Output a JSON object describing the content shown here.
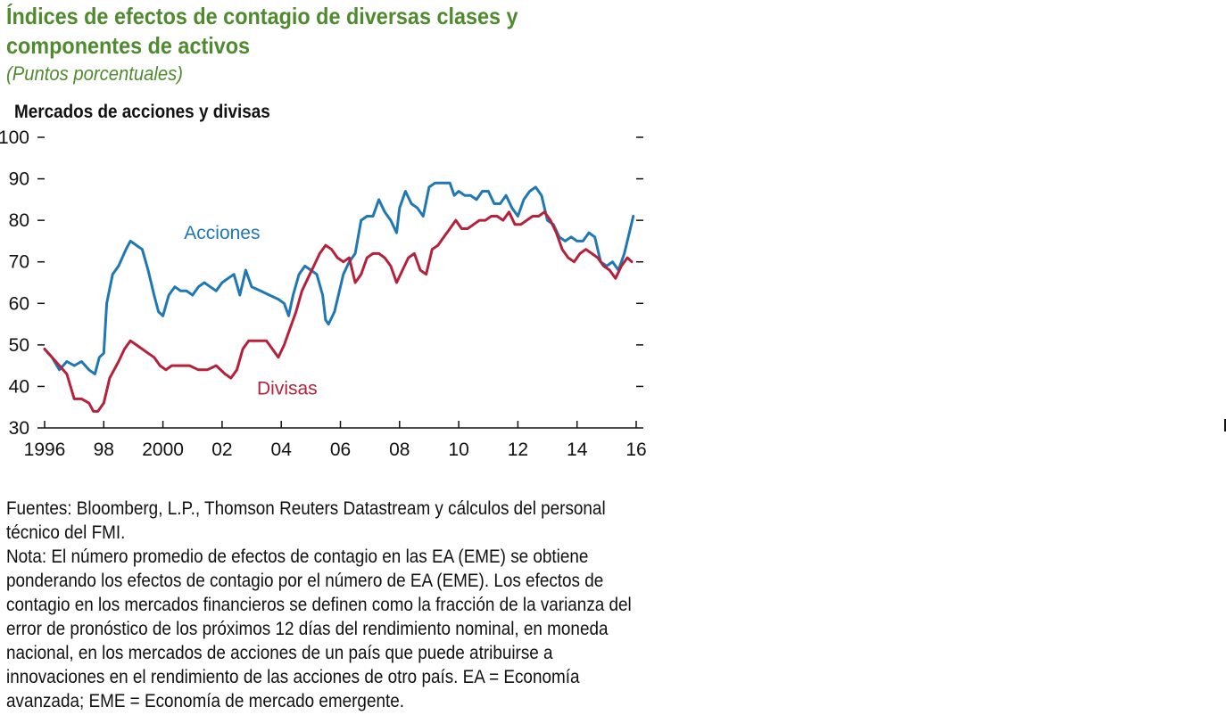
{
  "figure": {
    "title": "Índices de efectos de contagio de diversas clases y componentes de activos",
    "subtitle": "(Puntos porcentuales)",
    "panel_title": "Mercados de acciones y divisas",
    "sources": "Fuentes: Bloomberg, L.P., Thomson Reuters Datastream y cálculos del personal técnico del FMI.",
    "note": "Nota: El número promedio de efectos de contagio en las EA (EME) se obtiene ponderando los efectos de contagio por el número de EA (EME). Los efectos de contagio en los mercados financieros se definen como la fracción de la varianza del error de pronóstico de los próximos 12 días del rendimiento nominal, en moneda nacional, en los mercados de acciones de un país que puede atribuirse a innovaciones en el rendimiento de las acciones de otro país. EA = Economía avanzada; EME = Economía de mercado emergente."
  },
  "colors": {
    "title": "#4f8a2f",
    "acciones": "#1f77b4",
    "divisas": "#b5213b",
    "axis": "#111111"
  },
  "chart_data": {
    "type": "line",
    "title": "Mercados de acciones y divisas",
    "xlabel": "",
    "ylabel": "",
    "xlim": [
      1996,
      2016
    ],
    "ylim": [
      30,
      100
    ],
    "y_ticks": [
      30,
      40,
      50,
      60,
      70,
      80,
      90,
      100
    ],
    "y_tick_labels": [
      "30",
      "40",
      "50",
      "60",
      "70",
      "80",
      "90",
      "100"
    ],
    "x_ticks": [
      1996,
      1998,
      2000,
      2002,
      2004,
      2006,
      2008,
      2010,
      2012,
      2014,
      2016
    ],
    "x_tick_labels": [
      "1996",
      "98",
      "2000",
      "02",
      "04",
      "06",
      "08",
      "10",
      "12",
      "14",
      "16"
    ],
    "grid": false,
    "series": [
      {
        "name": "Acciones",
        "color_key": "acciones",
        "label_at": [
          2002.0,
          75.5
        ],
        "x": [
          1996.0,
          1996.25,
          1996.5,
          1996.75,
          1997.0,
          1997.25,
          1997.5,
          1997.7,
          1997.85,
          1998.0,
          1998.1,
          1998.3,
          1998.5,
          1998.75,
          1998.9,
          1999.1,
          1999.3,
          1999.5,
          1999.7,
          1999.85,
          2000.0,
          2000.2,
          2000.4,
          2000.6,
          2000.8,
          2001.0,
          2001.2,
          2001.4,
          2001.6,
          2001.8,
          2002.0,
          2002.2,
          2002.4,
          2002.6,
          2002.8,
          2003.0,
          2003.3,
          2003.6,
          2003.9,
          2004.1,
          2004.25,
          2004.4,
          2004.6,
          2004.8,
          2005.0,
          2005.2,
          2005.4,
          2005.5,
          2005.6,
          2005.8,
          2006.0,
          2006.1,
          2006.3,
          2006.5,
          2006.7,
          2006.9,
          2007.1,
          2007.3,
          2007.5,
          2007.7,
          2007.9,
          2008.0,
          2008.2,
          2008.4,
          2008.6,
          2008.8,
          2009.0,
          2009.2,
          2009.5,
          2009.7,
          2009.85,
          2010.0,
          2010.2,
          2010.4,
          2010.6,
          2010.8,
          2011.0,
          2011.2,
          2011.4,
          2011.6,
          2011.8,
          2012.0,
          2012.2,
          2012.4,
          2012.6,
          2012.8,
          2013.0,
          2013.2,
          2013.4,
          2013.6,
          2013.8,
          2014.0,
          2014.2,
          2014.4,
          2014.6,
          2014.8,
          2015.0,
          2015.2,
          2015.4,
          2015.6,
          2015.8,
          2015.9
        ],
        "y": [
          49,
          47,
          44,
          46,
          45,
          46,
          44,
          43,
          47,
          48,
          60,
          67,
          69,
          73,
          75,
          74,
          73,
          68,
          62,
          58,
          57,
          62,
          64,
          63,
          63,
          62,
          64,
          65,
          64,
          63,
          65,
          66,
          67,
          62,
          68,
          64,
          63,
          62,
          61,
          60,
          57,
          62,
          67,
          69,
          68,
          67,
          62,
          56,
          55,
          58,
          64,
          67,
          70,
          72,
          80,
          81,
          81,
          85,
          82,
          80,
          77,
          83,
          87,
          84,
          83,
          81,
          88,
          89,
          89,
          89,
          86,
          87,
          86,
          86,
          85,
          87,
          87,
          84,
          84,
          86,
          83,
          81,
          85,
          87,
          88,
          86,
          80,
          79,
          76,
          75,
          76,
          75,
          75,
          77,
          76,
          70,
          69,
          70,
          68,
          72,
          78,
          81
        ]
      },
      {
        "name": "Divisas",
        "color_key": "divisas",
        "label_at": [
          2004.2,
          38.0
        ],
        "x": [
          1996.0,
          1996.25,
          1996.5,
          1996.75,
          1997.0,
          1997.25,
          1997.5,
          1997.65,
          1997.8,
          1998.0,
          1998.2,
          1998.5,
          1998.7,
          1998.9,
          1999.1,
          1999.3,
          1999.5,
          1999.7,
          1999.9,
          2000.1,
          2000.3,
          2000.6,
          2000.9,
          2001.2,
          2001.5,
          2001.8,
          2002.1,
          2002.3,
          2002.5,
          2002.7,
          2002.9,
          2003.2,
          2003.5,
          2003.7,
          2003.9,
          2004.1,
          2004.3,
          2004.5,
          2004.7,
          2004.9,
          2005.1,
          2005.3,
          2005.5,
          2005.7,
          2005.9,
          2006.1,
          2006.3,
          2006.5,
          2006.7,
          2006.9,
          2007.1,
          2007.3,
          2007.5,
          2007.7,
          2007.9,
          2008.1,
          2008.3,
          2008.5,
          2008.7,
          2008.9,
          2009.1,
          2009.3,
          2009.5,
          2009.7,
          2009.9,
          2010.1,
          2010.3,
          2010.5,
          2010.7,
          2010.9,
          2011.1,
          2011.3,
          2011.5,
          2011.7,
          2011.9,
          2012.1,
          2012.3,
          2012.5,
          2012.7,
          2012.9,
          2013.1,
          2013.3,
          2013.5,
          2013.7,
          2013.9,
          2014.1,
          2014.3,
          2014.5,
          2014.7,
          2014.9,
          2015.1,
          2015.3,
          2015.5,
          2015.7,
          2015.85
        ],
        "y": [
          49,
          47,
          45,
          43,
          37,
          37,
          36,
          34,
          34,
          36,
          42,
          46,
          49,
          51,
          50,
          49,
          48,
          47,
          45,
          44,
          45,
          45,
          45,
          44,
          44,
          45,
          43,
          42,
          44,
          49,
          51,
          51,
          51,
          49,
          47,
          50,
          54,
          58,
          63,
          66,
          69,
          72,
          74,
          73,
          71,
          70,
          71,
          65,
          67,
          71,
          72,
          72,
          71,
          69,
          65,
          68,
          71,
          72,
          68,
          67,
          73,
          74,
          76,
          78,
          80,
          78,
          78,
          79,
          80,
          80,
          81,
          81,
          80,
          82,
          79,
          79,
          80,
          81,
          81,
          82,
          80,
          77,
          73,
          71,
          70,
          72,
          73,
          72,
          71,
          69,
          68,
          66,
          69,
          71,
          70
        ]
      }
    ]
  }
}
